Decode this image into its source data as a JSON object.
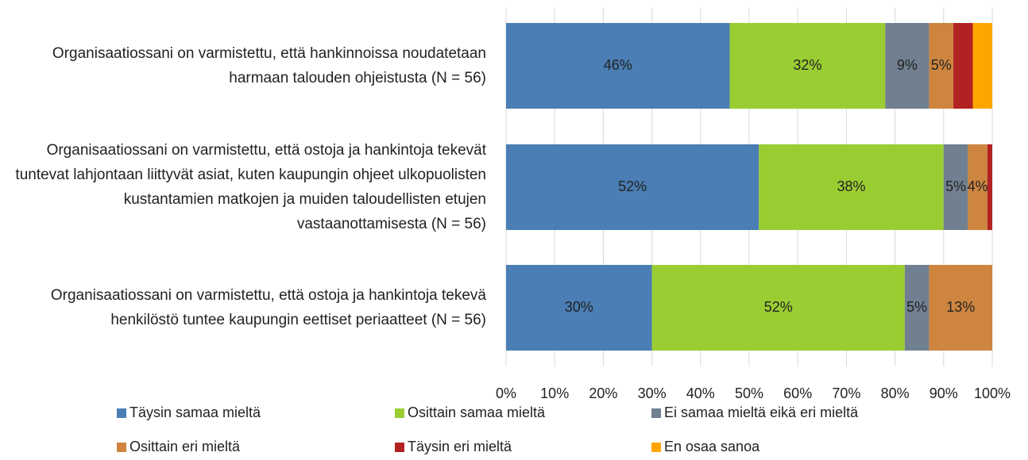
{
  "chart_data": {
    "type": "stacked-bar-horizontal",
    "categories": [
      "Organisaatiossani on varmistettu, että hankinnoissa noudatetaan harmaan talouden ohjeistusta (N = 56)",
      "Organisaatiossani on varmistettu, että ostoja ja hankintoja tekevät tuntevat lahjontaan liittyvät asiat, kuten kaupungin ohjeet ulkopuolisten kustantamien matkojen ja muiden taloudellisten etujen vastaanottamisesta (N = 56)",
      "Organisaatiossani on varmistettu, että ostoja ja hankintoja tekevä henkilöstö tuntee kaupungin eettiset periaatteet (N = 56)"
    ],
    "series": [
      {
        "name": "Täysin samaa mieltä",
        "color": "#4a7eb4",
        "values": [
          46,
          52,
          30
        ],
        "value_labels": [
          "46%",
          "52%",
          "30%"
        ]
      },
      {
        "name": "Osittain samaa mieltä",
        "color": "#9acd32",
        "values": [
          32,
          38,
          52
        ],
        "value_labels": [
          "32%",
          "38%",
          "52%"
        ]
      },
      {
        "name": "Ei samaa mieltä eikä eri mieltä",
        "color": "#708090",
        "values": [
          9,
          5,
          5
        ],
        "value_labels": [
          "9%",
          "5%",
          "5%"
        ]
      },
      {
        "name": "Osittain eri mieltä",
        "color": "#cd853f",
        "values": [
          5,
          4,
          13
        ],
        "value_labels": [
          "5%",
          "4%",
          "13%"
        ]
      },
      {
        "name": "Täysin eri mieltä",
        "color": "#b22222",
        "values": [
          4,
          1,
          0
        ],
        "value_labels": [
          null,
          null,
          null
        ]
      },
      {
        "name": "En osaa sanoa",
        "color": "#ffa500",
        "values": [
          4,
          0,
          0
        ],
        "value_labels": [
          null,
          null,
          null
        ]
      }
    ],
    "xlim": [
      0,
      100
    ],
    "xticks": [
      {
        "value": 0,
        "label": "0%"
      },
      {
        "value": 10,
        "label": "10%"
      },
      {
        "value": 20,
        "label": "20%"
      },
      {
        "value": 30,
        "label": "30%"
      },
      {
        "value": 40,
        "label": "40%"
      },
      {
        "value": 50,
        "label": "50%"
      },
      {
        "value": 60,
        "label": "60%"
      },
      {
        "value": 70,
        "label": "70%"
      },
      {
        "value": 80,
        "label": "80%"
      },
      {
        "value": 90,
        "label": "90%"
      },
      {
        "value": 100,
        "label": "100%"
      }
    ],
    "grid": true,
    "legend": "bottom"
  }
}
